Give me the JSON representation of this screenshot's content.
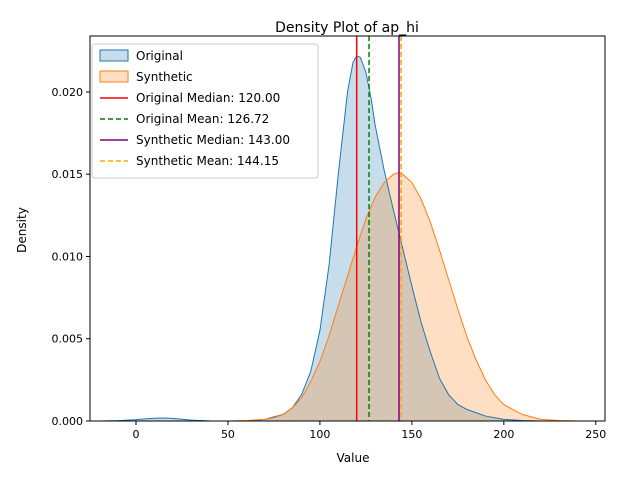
{
  "chart_data": {
    "type": "area",
    "title": "Density Plot of ap_hi",
    "xlabel": "Value",
    "ylabel": "Density",
    "xlim": [
      -25,
      255
    ],
    "ylim": [
      0,
      0.0234
    ],
    "x_ticks": [
      0,
      50,
      100,
      150,
      200,
      250
    ],
    "x_tick_labels": [
      "0",
      "50",
      "100",
      "150",
      "200",
      "250"
    ],
    "y_ticks": [
      0,
      0.005,
      0.01,
      0.015,
      0.02
    ],
    "y_tick_labels": [
      "0.000",
      "0.005",
      "0.010",
      "0.015",
      "0.020"
    ],
    "grid": false,
    "legend_position": "top-left",
    "series": [
      {
        "name": "Original",
        "color": "#1f77b4",
        "x": [
          -20,
          -10,
          0,
          5,
          10,
          15,
          20,
          25,
          30,
          40,
          50,
          60,
          70,
          80,
          85,
          90,
          95,
          100,
          105,
          110,
          115,
          118,
          120,
          122,
          125,
          128,
          130,
          135,
          140,
          145,
          150,
          155,
          160,
          165,
          170,
          175,
          180,
          185,
          190,
          200,
          210,
          220
        ],
        "y": [
          0,
          2e-05,
          8e-05,
          0.00013,
          0.00017,
          0.00018,
          0.00016,
          0.00011,
          5e-05,
          1e-05,
          0,
          0,
          0.0001,
          0.0004,
          0.0008,
          0.0016,
          0.003,
          0.0055,
          0.0095,
          0.015,
          0.02,
          0.0218,
          0.0222,
          0.0221,
          0.0212,
          0.0195,
          0.018,
          0.0152,
          0.0128,
          0.0105,
          0.0082,
          0.006,
          0.0042,
          0.0026,
          0.0016,
          0.001,
          0.0007,
          0.0005,
          0.0003,
          0.0001,
          3e-05,
          0
        ]
      },
      {
        "name": "Synthetic",
        "color": "#ff7f0e",
        "x": [
          50,
          60,
          70,
          75,
          80,
          85,
          90,
          95,
          100,
          105,
          110,
          115,
          120,
          125,
          130,
          135,
          140,
          143,
          145,
          150,
          155,
          160,
          165,
          170,
          175,
          180,
          185,
          190,
          195,
          200,
          210,
          220,
          230,
          240,
          245
        ],
        "y": [
          0,
          3e-05,
          0.0001,
          0.0002,
          0.0004,
          0.0008,
          0.0014,
          0.0024,
          0.0036,
          0.0052,
          0.007,
          0.0088,
          0.0106,
          0.0123,
          0.0136,
          0.0145,
          0.015,
          0.0151,
          0.015,
          0.0145,
          0.0135,
          0.0121,
          0.0104,
          0.0086,
          0.0068,
          0.0051,
          0.0037,
          0.0025,
          0.0016,
          0.001,
          0.0004,
          0.0001,
          3e-05,
          0,
          0
        ]
      }
    ],
    "vlines": [
      {
        "label": "Original Median: 120.00",
        "x": 120.0,
        "color": "#ff0000",
        "style": "solid"
      },
      {
        "label": "Original Mean: 126.72",
        "x": 126.72,
        "color": "#008000",
        "style": "dashed"
      },
      {
        "label": "Synthetic Median: 143.00",
        "x": 143.0,
        "color": "#800080",
        "style": "solid"
      },
      {
        "label": "Synthetic Mean: 144.15",
        "x": 144.15,
        "color": "#ffa500",
        "style": "dashed"
      }
    ]
  }
}
